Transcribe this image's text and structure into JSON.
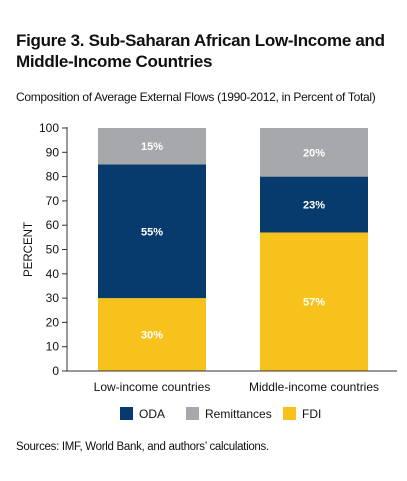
{
  "figure": {
    "title_line1": "Figure 3. Sub-Saharan African Low-Income and",
    "title_line2": "Middle-Income Countries",
    "subtitle": "Composition of Average External Flows (1990-2012, in Percent of Total)",
    "source": "Sources: IMF, World Bank, and authors’ calculations."
  },
  "chart_data": {
    "type": "bar",
    "stacked": true,
    "categories": [
      "Low-income countries",
      "Middle-income countries"
    ],
    "series": [
      {
        "name": "FDI",
        "values": [
          30,
          57
        ],
        "labels": [
          "30%",
          "57%"
        ],
        "color": "#f8c21d"
      },
      {
        "name": "ODA",
        "values": [
          55,
          23
        ],
        "labels": [
          "55%",
          "23%"
        ],
        "color": "#073b6d"
      },
      {
        "name": "Remittances",
        "values": [
          15,
          20
        ],
        "labels": [
          "15%",
          "20%"
        ],
        "color": "#a7a8ab"
      }
    ],
    "legend_order": [
      "ODA",
      "Remittances",
      "FDI"
    ],
    "ylabel": "PERCENT",
    "ylim": [
      0,
      100
    ],
    "yticks": [
      0,
      10,
      20,
      30,
      40,
      50,
      60,
      70,
      80,
      90,
      100
    ],
    "legend_position": "bottom",
    "grid": false
  }
}
